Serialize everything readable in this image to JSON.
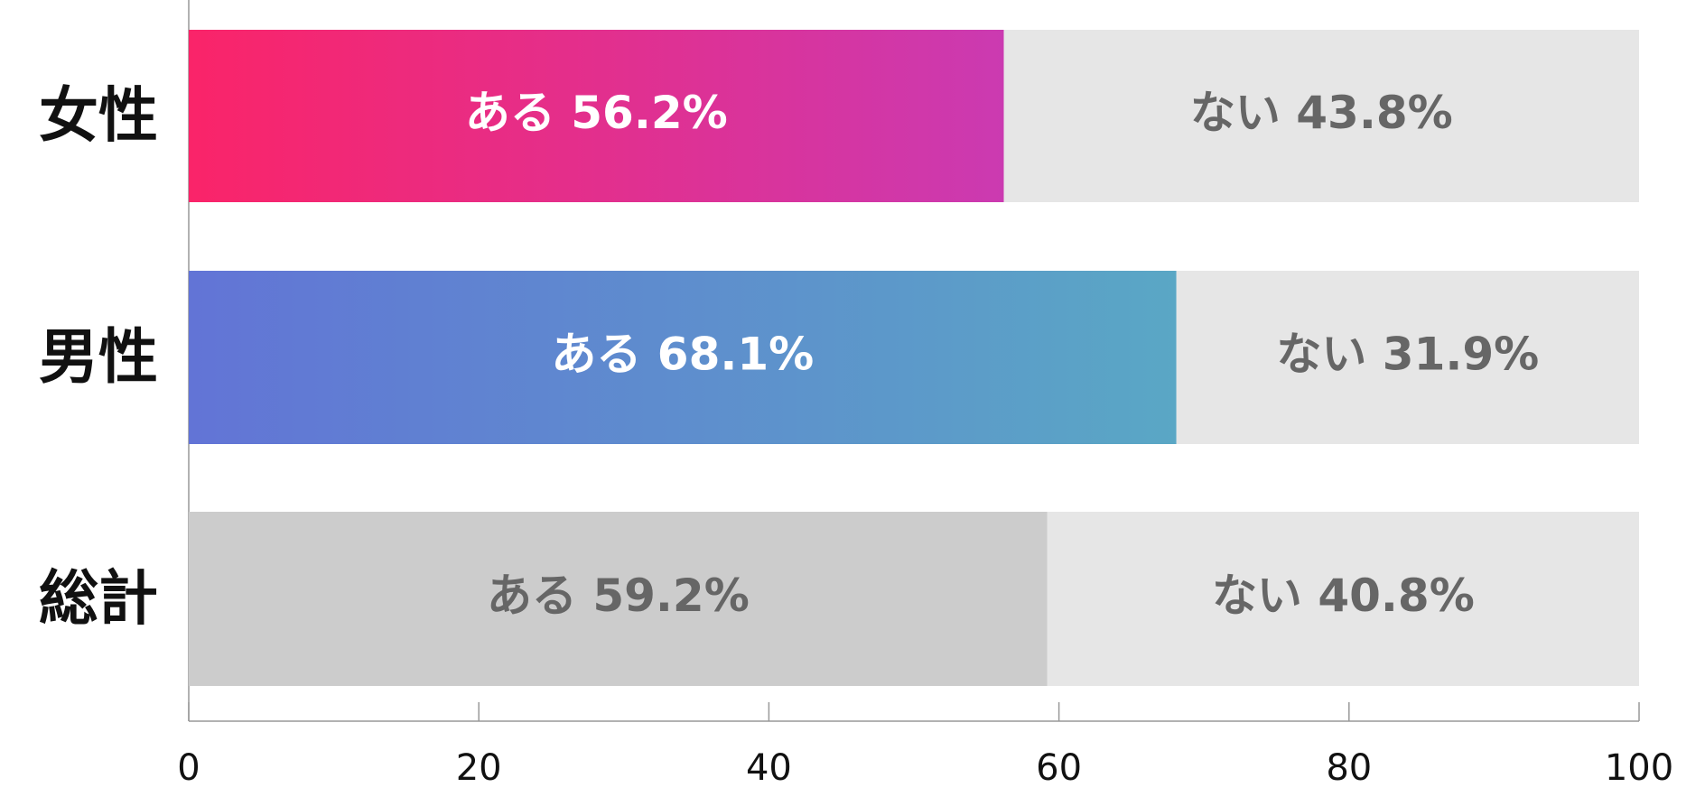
{
  "chart_data": {
    "type": "stacked-barh",
    "categories": [
      "女性",
      "男性",
      "総計"
    ],
    "series": [
      {
        "name": "ある",
        "values": [
          56.2,
          68.1,
          59.2
        ],
        "value_labels": [
          "ある 56.2%",
          "ある 68.1%",
          "ある 59.2%"
        ],
        "gradients": [
          [
            "#fa2469",
            "#cb3ab1"
          ],
          [
            "#6274d6",
            "#5aa7c5"
          ],
          [
            "#cccccc",
            "#cccccc"
          ]
        ],
        "label_colors": [
          "#ffffff",
          "#ffffff",
          "#666666"
        ]
      },
      {
        "name": "ない",
        "values": [
          43.8,
          31.9,
          40.8
        ],
        "value_labels": [
          "ない 43.8%",
          "ない 31.9%",
          "ない 40.8%"
        ],
        "gradients": [
          [
            "#e6e6e6",
            "#e6e6e6"
          ],
          [
            "#e6e6e6",
            "#e6e6e6"
          ],
          [
            "#e6e6e6",
            "#e6e6e6"
          ]
        ],
        "label_colors": [
          "#666666",
          "#666666",
          "#666666"
        ]
      }
    ],
    "xlim": [
      0,
      100
    ],
    "xticks": [
      0,
      20,
      40,
      60,
      80,
      100
    ]
  }
}
